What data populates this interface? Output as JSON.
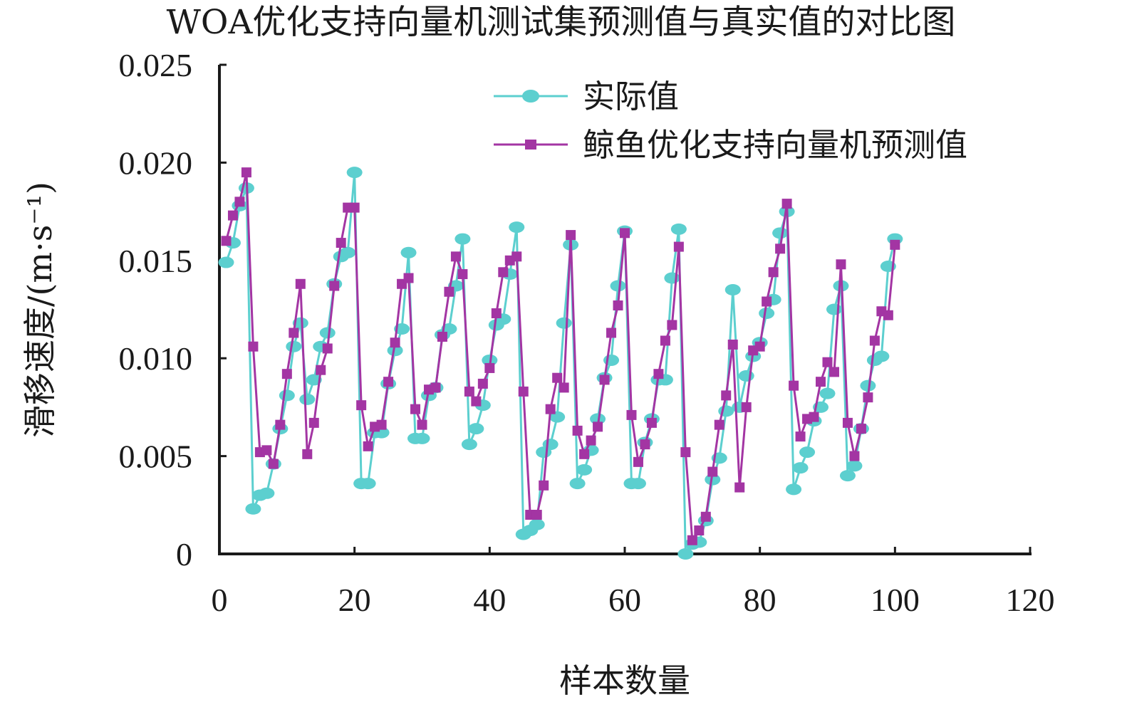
{
  "chart_data": {
    "type": "line",
    "title": "WOA优化支持向量机测试集预测值与真实值的对比图",
    "xlabel": "样本数量",
    "ylabel": "滑移速度/(m·s⁻¹)",
    "xlim": [
      0,
      120
    ],
    "ylim": [
      0,
      0.025
    ],
    "x_ticks": [
      "0",
      "20",
      "40",
      "60",
      "80",
      "100",
      "120"
    ],
    "y_ticks": [
      "0",
      "0.005",
      "0.010",
      "0.015",
      "0.020",
      "0.025"
    ],
    "grid": false,
    "legend_position": "top-right",
    "x": [
      1,
      2,
      3,
      4,
      5,
      6,
      7,
      8,
      9,
      10,
      11,
      12,
      13,
      14,
      15,
      16,
      17,
      18,
      19,
      20,
      21,
      22,
      23,
      24,
      25,
      26,
      27,
      28,
      29,
      30,
      31,
      32,
      33,
      34,
      35,
      36,
      37,
      38,
      39,
      40,
      41,
      42,
      43,
      44,
      45,
      46,
      47,
      48,
      49,
      50,
      51,
      52,
      53,
      54,
      55,
      56,
      57,
      58,
      59,
      60,
      61,
      62,
      63,
      64,
      65,
      66,
      67,
      68,
      69,
      70,
      71,
      72,
      73,
      74,
      75,
      76,
      77,
      78,
      79,
      80,
      81,
      82,
      83,
      84,
      85,
      86,
      87,
      88,
      89,
      90,
      91,
      92,
      93,
      94,
      95,
      96,
      97,
      98,
      99,
      100
    ],
    "series": [
      {
        "name": "实际值",
        "color": "#5ccfcf",
        "marker": "circle",
        "values": [
          0.0149,
          0.0159,
          0.0178,
          0.0187,
          0.0023,
          0.003,
          0.0031,
          0.0046,
          0.0064,
          0.0081,
          0.0106,
          0.0118,
          0.0079,
          0.0089,
          0.0106,
          0.0113,
          0.0138,
          0.0152,
          0.0154,
          0.0195,
          0.0036,
          0.0036,
          0.0062,
          0.0062,
          0.0087,
          0.0104,
          0.0115,
          0.0154,
          0.0059,
          0.0059,
          0.0081,
          0.0085,
          0.0112,
          0.0115,
          0.0137,
          0.0161,
          0.0056,
          0.0064,
          0.0076,
          0.0099,
          0.0117,
          0.012,
          0.0143,
          0.0167,
          0.001,
          0.0012,
          0.0015,
          0.0052,
          0.0056,
          0.007,
          0.0118,
          0.0158,
          0.0036,
          0.0043,
          0.0053,
          0.0069,
          0.009,
          0.0099,
          0.0137,
          0.0165,
          0.0036,
          0.0036,
          0.0057,
          0.0069,
          0.0089,
          0.0089,
          0.0141,
          0.0166,
          0.0,
          0.0005,
          0.0006,
          0.0017,
          0.0038,
          0.0049,
          0.0073,
          0.0135,
          0.0075,
          0.0091,
          0.0101,
          0.0108,
          0.0123,
          0.013,
          0.0164,
          0.0175,
          0.0033,
          0.0044,
          0.0052,
          0.0068,
          0.0075,
          0.0082,
          0.0125,
          0.0137,
          0.004,
          0.0045,
          0.0064,
          0.0086,
          0.0099,
          0.0101,
          0.0147,
          0.0161
        ]
      },
      {
        "name": "鲸鱼优化支持向量机预测值",
        "color": "#a335a3",
        "marker": "square",
        "values": [
          0.016,
          0.0173,
          0.018,
          0.0195,
          0.0106,
          0.0052,
          0.0053,
          0.0046,
          0.0066,
          0.0092,
          0.0113,
          0.0138,
          0.0051,
          0.0067,
          0.0094,
          0.0105,
          0.0137,
          0.0159,
          0.0177,
          0.0177,
          0.0076,
          0.0055,
          0.0065,
          0.0066,
          0.0088,
          0.0108,
          0.0138,
          0.0141,
          0.0074,
          0.0066,
          0.0084,
          0.0085,
          0.0111,
          0.0134,
          0.0152,
          0.0143,
          0.0083,
          0.0078,
          0.0087,
          0.0095,
          0.0123,
          0.0144,
          0.015,
          0.0152,
          0.0083,
          0.002,
          0.002,
          0.0035,
          0.0074,
          0.009,
          0.0085,
          0.0163,
          0.0063,
          0.0051,
          0.0058,
          0.0065,
          0.0089,
          0.0113,
          0.0127,
          0.0164,
          0.0071,
          0.0047,
          0.0056,
          0.0067,
          0.0092,
          0.0109,
          0.0117,
          0.0157,
          0.0052,
          0.0007,
          0.0012,
          0.0019,
          0.0042,
          0.0066,
          0.0081,
          0.0107,
          0.0034,
          0.0075,
          0.0104,
          0.0106,
          0.0129,
          0.0144,
          0.0156,
          0.0179,
          0.0086,
          0.006,
          0.0069,
          0.007,
          0.0088,
          0.0098,
          0.0093,
          0.0148,
          0.0067,
          0.005,
          0.0064,
          0.008,
          0.0109,
          0.0124,
          0.0122,
          0.0158
        ]
      }
    ]
  }
}
